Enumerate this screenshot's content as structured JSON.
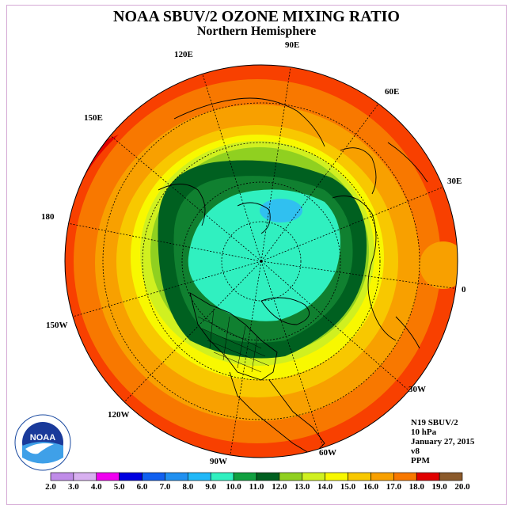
{
  "title": "NOAA SBUV/2 OZONE MIXING RATIO",
  "subtitle": "Northern Hemisphere",
  "longitude_labels": [
    {
      "id": "lon-90e",
      "text": "90E"
    },
    {
      "id": "lon-60e",
      "text": "60E"
    },
    {
      "id": "lon-30e",
      "text": "30E"
    },
    {
      "id": "lon-0",
      "text": "0"
    },
    {
      "id": "lon-30w",
      "text": "30W"
    },
    {
      "id": "lon-60w",
      "text": "60W"
    },
    {
      "id": "lon-90w",
      "text": "90W"
    },
    {
      "id": "lon-120w",
      "text": "120W"
    },
    {
      "id": "lon-150w",
      "text": "150W"
    },
    {
      "id": "lon-180",
      "text": "180"
    },
    {
      "id": "lon-150e",
      "text": "150E"
    },
    {
      "id": "lon-120e",
      "text": "120E"
    }
  ],
  "info": {
    "satellite": "N19 SBUV/2",
    "pressure": "10 hPa",
    "date": "January 27, 2015",
    "version": "v8",
    "units": "PPM"
  },
  "colorbar": {
    "labels": [
      "2.0",
      "3.0",
      "4.0",
      "5.0",
      "6.0",
      "7.0",
      "8.0",
      "9.0",
      "10.0",
      "11.0",
      "12.0",
      "13.0",
      "14.0",
      "15.0",
      "16.0",
      "17.0",
      "18.0",
      "19.0",
      "20.0"
    ],
    "colors": [
      "#c08ce8",
      "#d8b0f0",
      "#f000f0",
      "#0000e0",
      "#1060f0",
      "#2090f0",
      "#20b8f8",
      "#30e0f0",
      "#30f0c0",
      "#10a040",
      "#108030",
      "#006020",
      "#90d020",
      "#d0f020",
      "#f8f800",
      "#f8c800",
      "#f8a000",
      "#f87800",
      "#f84000",
      "#e00000",
      "#8b5a2b"
    ],
    "boxes": [
      {
        "range": "2-3",
        "color": "#c08ce8"
      },
      {
        "range": "3-4",
        "color": "#d8b0f0"
      },
      {
        "range": "4-5",
        "color": "#f000f0"
      },
      {
        "range": "5-6",
        "color": "#0000e0"
      },
      {
        "range": "6-7",
        "color": "#1060f0"
      },
      {
        "range": "7-8",
        "color": "#2090f0"
      },
      {
        "range": "8-9",
        "color": "#20b8f8"
      },
      {
        "range": "9-10",
        "color": "#30f0c0"
      },
      {
        "range": "10-11",
        "color": "#10a040"
      },
      {
        "range": "11-12",
        "color": "#006020"
      },
      {
        "range": "12-13",
        "color": "#90d020"
      },
      {
        "range": "13-14",
        "color": "#d0f020"
      },
      {
        "range": "14-15",
        "color": "#f8f800"
      },
      {
        "range": "15-16",
        "color": "#f8c800"
      },
      {
        "range": "16-17",
        "color": "#f8a000"
      },
      {
        "range": "17-18",
        "color": "#f87800"
      },
      {
        "range": "18-19",
        "color": "#e00000"
      },
      {
        "range": "19-20",
        "color": "#8b5a2b"
      }
    ]
  },
  "logo_text": "NOAA"
}
